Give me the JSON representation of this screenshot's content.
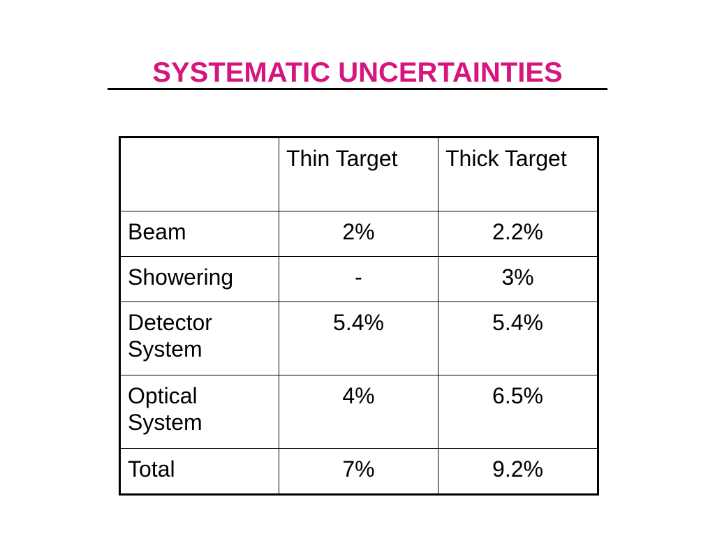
{
  "title": "SYSTEMATIC UNCERTAINTIES",
  "colors": {
    "title": "#d6157f",
    "header_text": "#a3321b",
    "value_text": "#33339a",
    "total_label": "#e0147f",
    "border": "#000000"
  },
  "table": {
    "corner": "",
    "columns": [
      "Thin Target",
      "Thick Target"
    ],
    "rows": [
      {
        "label": "Beam",
        "thin": "2%",
        "thick": "2.2%"
      },
      {
        "label": "Showering",
        "thin": "-",
        "thick": "3%"
      },
      {
        "label": "Detector System",
        "thin": "5.4%",
        "thick": "5.4%"
      },
      {
        "label": "Optical System",
        "thin": "4%",
        "thick": "6.5%"
      },
      {
        "label": "Total",
        "thin": "7%",
        "thick": "9.2%"
      }
    ]
  }
}
